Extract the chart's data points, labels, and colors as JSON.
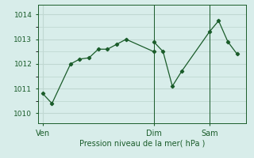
{
  "title": "",
  "xlabel": "Pression niveau de la mer( hPa )",
  "background_color": "#d8edea",
  "grid_color": "#c0d8d2",
  "line_color": "#1a5c2a",
  "marker_color": "#1a5c2a",
  "yticks": [
    1010,
    1011,
    1012,
    1013,
    1014
  ],
  "ylim": [
    1009.6,
    1014.4
  ],
  "xtick_labels": [
    "Ven",
    "Dim",
    "Sam"
  ],
  "xtick_positions": [
    0,
    12,
    18
  ],
  "xlim": [
    -0.5,
    22
  ],
  "series1_x": [
    0,
    1,
    3,
    4,
    5,
    6,
    7,
    8,
    9,
    12
  ],
  "series1_y": [
    1010.8,
    1010.4,
    1012.0,
    1012.2,
    1012.25,
    1012.6,
    1012.6,
    1012.8,
    1013.0,
    1012.5
  ],
  "series2_x": [
    12,
    13,
    14,
    15,
    18,
    19,
    20,
    21
  ],
  "series2_y": [
    1012.9,
    1012.5,
    1011.1,
    1011.7,
    1013.3,
    1013.75,
    1012.9,
    1012.4
  ],
  "vline_x": 12,
  "vline2_x": 18,
  "xlabel_fontsize": 7,
  "ytick_fontsize": 6.5,
  "xtick_fontsize": 7
}
